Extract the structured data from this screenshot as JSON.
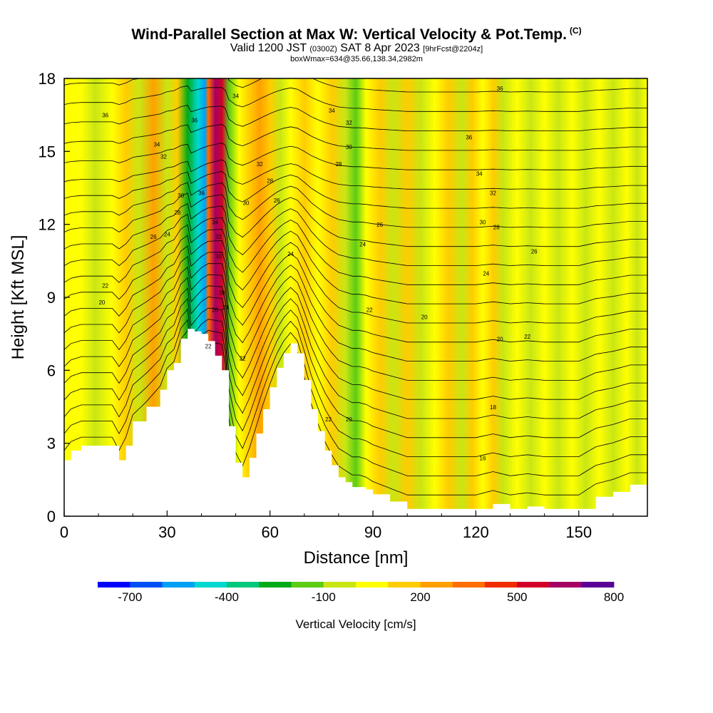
{
  "title": {
    "main": "Wind-Parallel Section at Max W: Vertical Velocity & Pot.Temp.",
    "copyright": "(C)",
    "valid_prefix": "Valid 1200 JST",
    "valid_utc": "(0300Z)",
    "valid_date": "SAT 8 Apr 2023",
    "forecast": "[9hrFcst@2204z]",
    "box": "boxWmax=634@35.66,138.34,2982m"
  },
  "chart_data": {
    "type": "heatmap",
    "xlabel": "Distance [nm]",
    "ylabel": "Height [Kft MSL]",
    "xlim": [
      0,
      170
    ],
    "ylim": [
      0,
      18
    ],
    "xticks": [
      "0",
      "30",
      "60",
      "90",
      "120",
      "150"
    ],
    "yticks": [
      "0",
      "3",
      "6",
      "9",
      "12",
      "15",
      "18"
    ],
    "terrain": {
      "distance_nm": [
        0,
        2,
        5,
        10,
        14,
        16,
        18,
        20,
        24,
        28,
        30,
        32,
        34,
        36,
        38,
        40,
        42,
        44,
        46,
        48,
        50,
        52,
        54,
        56,
        58,
        60,
        62,
        64,
        66,
        68,
        70,
        72,
        74,
        76,
        78,
        80,
        82,
        84,
        86,
        88,
        90,
        95,
        100,
        105,
        110,
        115,
        120,
        125,
        130,
        135,
        140,
        145,
        150,
        155,
        160,
        165,
        170
      ],
      "height_kft": [
        2.3,
        2.7,
        2.9,
        2.9,
        2.9,
        2.3,
        2.9,
        3.9,
        4.5,
        5.2,
        6.0,
        6.3,
        7.3,
        7.7,
        7.6,
        7.5,
        7.2,
        6.6,
        6.0,
        3.7,
        2.2,
        1.6,
        2.4,
        3.4,
        4.4,
        5.3,
        6.1,
        6.7,
        7.1,
        6.7,
        5.6,
        4.4,
        3.5,
        2.7,
        2.1,
        1.6,
        1.4,
        1.2,
        1.2,
        1.1,
        0.9,
        0.6,
        0.3,
        0.3,
        0.3,
        0.3,
        0.3,
        0.5,
        0.3,
        0.4,
        0.3,
        0.3,
        0.3,
        0.8,
        1.0,
        1.3,
        1.3
      ]
    },
    "vertical_velocity_bands": [
      {
        "distance_nm": 0,
        "w": 40
      },
      {
        "distance_nm": 5,
        "w": 90
      },
      {
        "distance_nm": 9,
        "w": -80
      },
      {
        "distance_nm": 14,
        "w": 30
      },
      {
        "distance_nm": 18,
        "w": 120
      },
      {
        "distance_nm": 22,
        "w": -90
      },
      {
        "distance_nm": 26,
        "w": 210
      },
      {
        "distance_nm": 30,
        "w": -80
      },
      {
        "distance_nm": 33,
        "w": 100
      },
      {
        "distance_nm": 36,
        "w": -250
      },
      {
        "distance_nm": 39,
        "w": -420
      },
      {
        "distance_nm": 41,
        "w": -600
      },
      {
        "distance_nm": 42,
        "w": 300
      },
      {
        "distance_nm": 44,
        "w": 650
      },
      {
        "distance_nm": 46,
        "w": 500
      },
      {
        "distance_nm": 48,
        "w": -120
      },
      {
        "distance_nm": 51,
        "w": 60
      },
      {
        "distance_nm": 54,
        "w": 180
      },
      {
        "distance_nm": 57,
        "w": 240
      },
      {
        "distance_nm": 60,
        "w": 120
      },
      {
        "distance_nm": 63,
        "w": -60
      },
      {
        "distance_nm": 66,
        "w": 20
      },
      {
        "distance_nm": 70,
        "w": 100
      },
      {
        "distance_nm": 74,
        "w": 40
      },
      {
        "distance_nm": 78,
        "w": 150
      },
      {
        "distance_nm": 82,
        "w": -70
      },
      {
        "distance_nm": 85,
        "w": -150
      },
      {
        "distance_nm": 88,
        "w": 10
      },
      {
        "distance_nm": 92,
        "w": 100
      },
      {
        "distance_nm": 96,
        "w": -60
      },
      {
        "distance_nm": 100,
        "w": 110
      },
      {
        "distance_nm": 104,
        "w": -50
      },
      {
        "distance_nm": 108,
        "w": 60
      },
      {
        "distance_nm": 112,
        "w": 130
      },
      {
        "distance_nm": 116,
        "w": -40
      },
      {
        "distance_nm": 119,
        "w": 180
      },
      {
        "distance_nm": 122,
        "w": 60
      },
      {
        "distance_nm": 125,
        "w": 160
      },
      {
        "distance_nm": 128,
        "w": -60
      },
      {
        "distance_nm": 132,
        "w": 70
      },
      {
        "distance_nm": 136,
        "w": -50
      },
      {
        "distance_nm": 140,
        "w": 90
      },
      {
        "distance_nm": 144,
        "w": -50
      },
      {
        "distance_nm": 148,
        "w": 60
      },
      {
        "distance_nm": 152,
        "w": -60
      },
      {
        "distance_nm": 156,
        "w": 70
      },
      {
        "distance_nm": 160,
        "w": -40
      },
      {
        "distance_nm": 164,
        "w": 60
      },
      {
        "distance_nm": 167,
        "w": -30
      },
      {
        "distance_nm": 170,
        "w": 40
      }
    ],
    "contour_labels": [
      {
        "text": "36",
        "x": 12,
        "y": 16.4
      },
      {
        "text": "34",
        "x": 27,
        "y": 15.2
      },
      {
        "text": "32",
        "x": 29,
        "y": 14.7
      },
      {
        "text": "36",
        "x": 38,
        "y": 16.2
      },
      {
        "text": "30",
        "x": 34,
        "y": 13.1
      },
      {
        "text": "28",
        "x": 33,
        "y": 12.4
      },
      {
        "text": "36",
        "x": 40,
        "y": 13.2
      },
      {
        "text": "26",
        "x": 26,
        "y": 11.4
      },
      {
        "text": "24",
        "x": 30,
        "y": 11.5
      },
      {
        "text": "22",
        "x": 12,
        "y": 9.4
      },
      {
        "text": "20",
        "x": 11,
        "y": 8.7
      },
      {
        "text": "34",
        "x": 44,
        "y": 12.0
      },
      {
        "text": "32",
        "x": 45,
        "y": 11.4
      },
      {
        "text": "30",
        "x": 45,
        "y": 10.6
      },
      {
        "text": "28",
        "x": 46,
        "y": 9.1
      },
      {
        "text": "26",
        "x": 44,
        "y": 8.4
      },
      {
        "text": "24",
        "x": 47,
        "y": 8.5
      },
      {
        "text": "22",
        "x": 42,
        "y": 6.9
      },
      {
        "text": "22",
        "x": 52,
        "y": 6.4
      },
      {
        "text": "34",
        "x": 50,
        "y": 17.2
      },
      {
        "text": "32",
        "x": 57,
        "y": 14.4
      },
      {
        "text": "30",
        "x": 53,
        "y": 12.8
      },
      {
        "text": "28",
        "x": 60,
        "y": 13.7
      },
      {
        "text": "26",
        "x": 62,
        "y": 12.9
      },
      {
        "text": "24",
        "x": 66,
        "y": 10.7
      },
      {
        "text": "34",
        "x": 78,
        "y": 16.6
      },
      {
        "text": "32",
        "x": 83,
        "y": 16.1
      },
      {
        "text": "30",
        "x": 83,
        "y": 15.1
      },
      {
        "text": "28",
        "x": 80,
        "y": 14.4
      },
      {
        "text": "26",
        "x": 92,
        "y": 11.9
      },
      {
        "text": "24",
        "x": 87,
        "y": 11.1
      },
      {
        "text": "22",
        "x": 89,
        "y": 8.4
      },
      {
        "text": "22",
        "x": 77,
        "y": 3.9
      },
      {
        "text": "20",
        "x": 83,
        "y": 3.9
      },
      {
        "text": "36",
        "x": 127,
        "y": 17.5
      },
      {
        "text": "36",
        "x": 118,
        "y": 15.5
      },
      {
        "text": "34",
        "x": 121,
        "y": 14.0
      },
      {
        "text": "32",
        "x": 125,
        "y": 13.2
      },
      {
        "text": "30",
        "x": 122,
        "y": 12.0
      },
      {
        "text": "28",
        "x": 126,
        "y": 11.8
      },
      {
        "text": "26",
        "x": 137,
        "y": 10.8
      },
      {
        "text": "24",
        "x": 123,
        "y": 9.9
      },
      {
        "text": "20",
        "x": 105,
        "y": 8.1
      },
      {
        "text": "20",
        "x": 127,
        "y": 7.2
      },
      {
        "text": "22",
        "x": 135,
        "y": 7.3
      },
      {
        "text": "18",
        "x": 125,
        "y": 4.4
      },
      {
        "text": "16",
        "x": 122,
        "y": 2.3
      }
    ],
    "colorbar": {
      "title": "Vertical Velocity [cm/s]",
      "colors": [
        "#0000ff",
        "#0050f5",
        "#00a0f5",
        "#00d8d0",
        "#00c87c",
        "#00aa18",
        "#5ccc14",
        "#c8e614",
        "#ffff00",
        "#ffcc00",
        "#ffa000",
        "#ff6e00",
        "#f02d00",
        "#d20028",
        "#a50064",
        "#5a0096"
      ],
      "tick_labels": [
        "-700",
        "-400",
        "-100",
        "200",
        "500",
        "800"
      ],
      "tick_values": [
        -700,
        -400,
        -100,
        200,
        500,
        800
      ],
      "range": [
        -800,
        800
      ]
    }
  }
}
